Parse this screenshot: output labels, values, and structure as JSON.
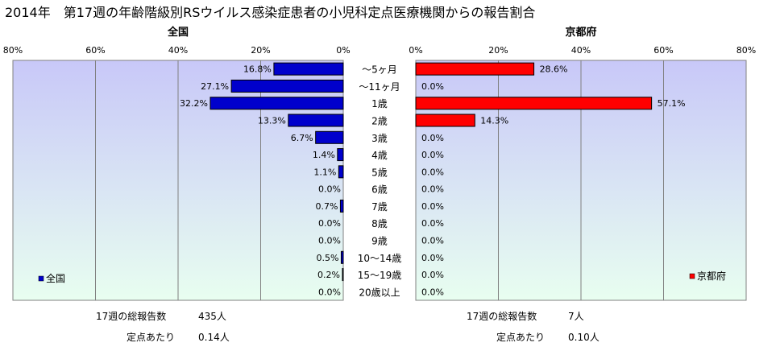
{
  "title": "2014年　第17週の年齢階級別RSウイルス感染症患者の小児科定点医療機関からの報告割合",
  "categories": [
    "～5ヶ月",
    "～11ヶ月",
    "1歳",
    "2歳",
    "3歳",
    "4歳",
    "5歳",
    "6歳",
    "7歳",
    "8歳",
    "9歳",
    "10～14歳",
    "15～19歳",
    "20歳以上"
  ],
  "colors": {
    "national": "#0000cc",
    "kyoto": "#ff0000",
    "plot_bg_top": "#c8c8f8",
    "plot_bg_bottom": "#e8fef0"
  },
  "chart_data": [
    {
      "type": "bar",
      "orientation": "horizontal-reversed",
      "title": "全国",
      "legend": "全国",
      "legend_position": "bottom-left",
      "xlim": [
        0,
        80
      ],
      "x_ticks": [
        "80%",
        "60%",
        "40%",
        "20%",
        "0%"
      ],
      "grid": true,
      "series": [
        {
          "name": "全国",
          "values": [
            16.8,
            27.1,
            32.2,
            13.3,
            6.7,
            1.4,
            1.1,
            0.0,
            0.7,
            0.0,
            0.0,
            0.5,
            0.2,
            0.0
          ]
        }
      ]
    },
    {
      "type": "bar",
      "orientation": "horizontal",
      "title": "京都府",
      "legend": "京都府",
      "legend_position": "bottom-right",
      "xlim": [
        0,
        80
      ],
      "x_ticks": [
        "0%",
        "20%",
        "40%",
        "60%",
        "80%"
      ],
      "grid": true,
      "series": [
        {
          "name": "京都府",
          "values": [
            28.6,
            0.0,
            57.1,
            14.3,
            0.0,
            0.0,
            0.0,
            0.0,
            0.0,
            0.0,
            0.0,
            0.0,
            0.0,
            0.0
          ]
        }
      ]
    }
  ],
  "footer": {
    "national": {
      "reports_label": "17週の総報告数",
      "reports_value": "435人",
      "per_site_label": "定点あたり",
      "per_site_value": "0.14人"
    },
    "kyoto": {
      "reports_label": "17週の総報告数",
      "reports_value": "7人",
      "per_site_label": "定点あたり",
      "per_site_value": "0.10人"
    }
  }
}
